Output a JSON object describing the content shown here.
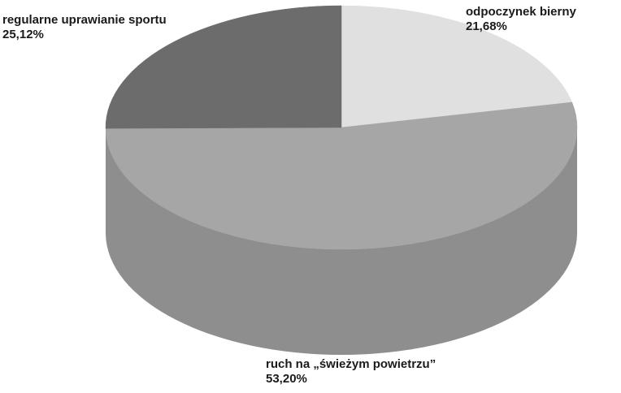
{
  "chart_data": {
    "type": "pie",
    "style": "3d",
    "title": "",
    "slices": [
      {
        "label": "odpoczynek bierny",
        "value": 21.68,
        "value_label": "21,68%",
        "color": "#e0e0e0",
        "side_color": "#c4c4c4"
      },
      {
        "label": "ruch na „świeżym powietrzu”",
        "value": 53.2,
        "value_label": "53,20%",
        "color": "#a6a6a6",
        "side_color": "#8e8e8e"
      },
      {
        "label": "regularne uprawianie sportu",
        "value": 25.12,
        "value_label": "25,12%",
        "color": "#6c6c6c",
        "side_color": "#5e5e5e"
      }
    ],
    "legend": "none"
  }
}
